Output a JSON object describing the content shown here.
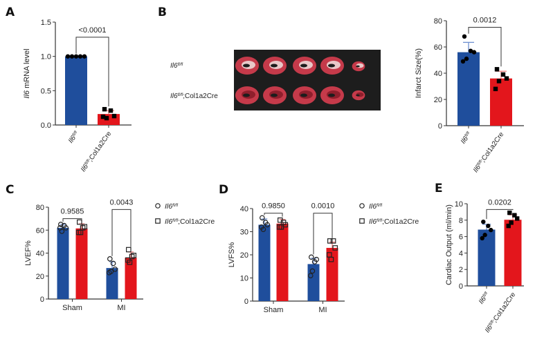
{
  "colors": {
    "blue": "#1f4e9c",
    "red": "#e3161c",
    "blue_err": "#6d8fd0",
    "red_err": "#f08080",
    "axis": "#333333"
  },
  "legend": {
    "items": [
      {
        "marker": "open-circle",
        "gene": "Il6",
        "sup": "fl/fl",
        "suffix": ""
      },
      {
        "marker": "open-square",
        "gene": "Il6",
        "sup": "fl/fl",
        "suffix": ";Col1a2Cre"
      }
    ]
  },
  "image_panel": {
    "rows": [
      {
        "gene": "Il6",
        "sup": "fl/fl",
        "suffix": ""
      },
      {
        "gene": "Il6",
        "sup": "fl/fl",
        "suffix": ";Col1a2Cre"
      }
    ]
  },
  "chart_data": [
    {
      "panel": "A",
      "type": "bar",
      "ylabel_gene": "Il6",
      "ylabel": " mRNA level",
      "ylim": [
        0,
        1.5
      ],
      "yticks": [
        "0.0",
        "0.5",
        "1.0",
        "1.5"
      ],
      "ytick_values": [
        0,
        0.5,
        1.0,
        1.5
      ],
      "categories": [
        {
          "gene": "Il6",
          "sup": "fl/fl",
          "suffix": ""
        },
        {
          "gene": "Il6",
          "sup": "fl/fl",
          "suffix": ";Col1a2Cre"
        }
      ],
      "series": [
        {
          "name": "Il6fl/fl",
          "mean": 1.0,
          "err": 0.0,
          "points": [
            1.0,
            1.0,
            1.0,
            1.0,
            1.0
          ],
          "marker": "circle"
        },
        {
          "name": "Il6fl/fl;Col1a2Cre",
          "mean": 0.16,
          "err": 0.05,
          "points": [
            0.23,
            0.21,
            0.13,
            0.1,
            0.12
          ],
          "marker": "square"
        }
      ],
      "comparisons": [
        {
          "p": "<0.0001"
        }
      ]
    },
    {
      "panel": "B",
      "type": "bar",
      "ylabel": "Infarct Size(%)",
      "ylim": [
        0,
        80
      ],
      "yticks": [
        "0",
        "20",
        "40",
        "60",
        "80"
      ],
      "ytick_values": [
        0,
        20,
        40,
        60,
        80
      ],
      "categories": [
        {
          "gene": "Il6",
          "sup": "fl/fl",
          "suffix": ""
        },
        {
          "gene": "Il6",
          "sup": "fl/fl",
          "suffix": ";Col1a2Cre"
        }
      ],
      "series": [
        {
          "name": "Il6fl/fl",
          "mean": 56,
          "err": 7.5,
          "points": [
            68,
            57,
            56,
            51,
            49
          ],
          "marker": "circle"
        },
        {
          "name": "Il6fl/fl;Col1a2Cre",
          "mean": 36,
          "err": 5.5,
          "points": [
            43,
            39,
            36,
            34,
            28
          ],
          "marker": "square"
        }
      ],
      "comparisons": [
        {
          "p": "0.0012"
        }
      ]
    },
    {
      "panel": "C",
      "type": "grouped-bar",
      "ylabel": "LVEF%",
      "ylim": [
        0,
        80
      ],
      "yticks": [
        "0",
        "20",
        "40",
        "60",
        "80"
      ],
      "ytick_values": [
        0,
        20,
        40,
        60,
        80
      ],
      "groups": [
        "Sham",
        "MI"
      ],
      "series": [
        {
          "name": "Il6fl/fl",
          "marker": "open-circle",
          "mean": [
            62,
            27
          ],
          "err": [
            3,
            5.5
          ],
          "points": [
            [
              65,
              64,
              62,
              59,
              62
            ],
            [
              35,
              31,
              26,
              24,
              23
            ]
          ]
        },
        {
          "name": "Il6fl/fl;Col1a2Cre",
          "marker": "open-square",
          "mean": [
            61.5,
            36
          ],
          "err": [
            4,
            5
          ],
          "points": [
            [
              67,
              62,
              63,
              58,
              58
            ],
            [
              43,
              37,
              38,
              32,
              34
            ]
          ]
        }
      ],
      "comparisons": [
        {
          "p": "0.9585"
        },
        {
          "p": "0.0043"
        }
      ]
    },
    {
      "panel": "D",
      "type": "grouped-bar",
      "ylabel": "LVFS%",
      "ylim": [
        0,
        40
      ],
      "yticks": [
        "0",
        "10",
        "20",
        "30",
        "40"
      ],
      "ytick_values": [
        0,
        10,
        20,
        30,
        40
      ],
      "groups": [
        "Sham",
        "MI"
      ],
      "series": [
        {
          "name": "Il6fl/fl",
          "marker": "open-circle",
          "mean": [
            33,
            16
          ],
          "err": [
            2.5,
            2.5
          ],
          "points": [
            [
              36,
              34,
              33,
              31,
              32
            ],
            [
              19,
              17,
              18,
              13,
              11
            ]
          ]
        },
        {
          "name": "Il6fl/fl;Col1a2Cre",
          "marker": "open-square",
          "mean": [
            33.5,
            23
          ],
          "err": [
            1.8,
            2.5
          ],
          "points": [
            [
              35,
              34,
              33,
              32,
              32
            ],
            [
              26,
              26,
              23,
              18,
              20
            ]
          ]
        }
      ],
      "comparisons": [
        {
          "p": "0.9850"
        },
        {
          "p": "0.0010"
        }
      ]
    },
    {
      "panel": "E",
      "type": "bar",
      "ylabel": "Cardiac Output (ml/min)",
      "ylim": [
        0,
        10
      ],
      "yticks": [
        "0",
        "2",
        "4",
        "6",
        "8",
        "10"
      ],
      "ytick_values": [
        0,
        2,
        4,
        6,
        8,
        10
      ],
      "categories": [
        {
          "gene": "Il6",
          "sup": "fl/fl",
          "suffix": ""
        },
        {
          "gene": "Il6",
          "sup": "fl/fl",
          "suffix": ";Col1a2Cre"
        }
      ],
      "series": [
        {
          "name": "Il6fl/fl",
          "mean": 6.85,
          "err": 0.65,
          "points": [
            7.8,
            7.3,
            6.8,
            6.2,
            5.8
          ],
          "marker": "circle"
        },
        {
          "name": "Il6fl/fl;Col1a2Cre",
          "mean": 8.05,
          "err": 0.6,
          "points": [
            8.9,
            8.6,
            8.2,
            7.7,
            7.3
          ],
          "marker": "square"
        }
      ],
      "comparisons": [
        {
          "p": "0.0202"
        }
      ]
    }
  ]
}
